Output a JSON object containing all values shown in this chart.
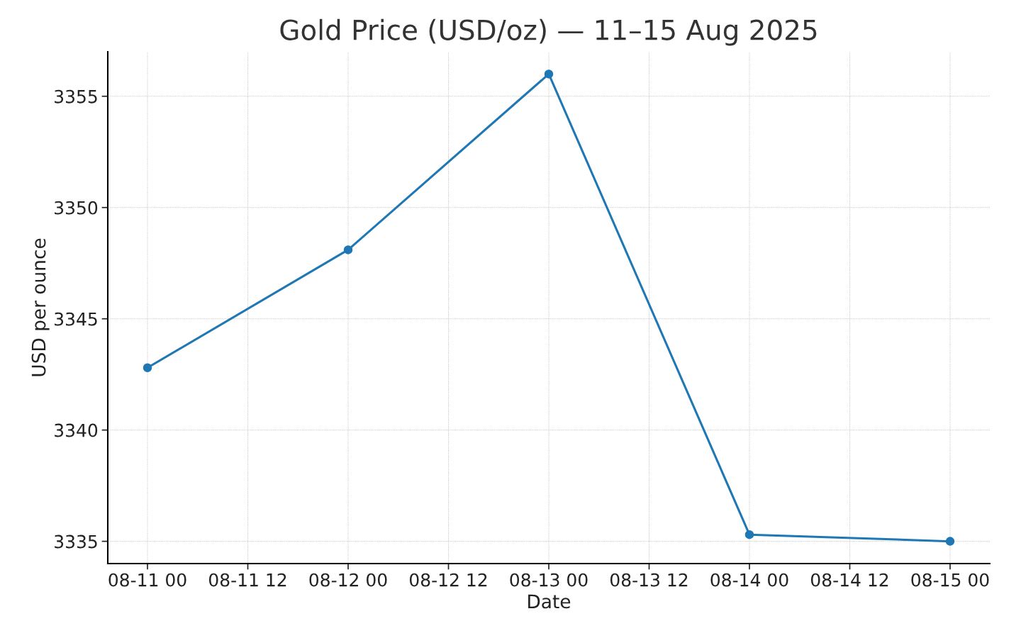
{
  "chart_data": {
    "type": "line",
    "title": "Gold Price (USD/oz) — 11–15 Aug 2025",
    "xlabel": "Date",
    "ylabel": "USD per ounce",
    "x": [
      "2025-08-11",
      "2025-08-12",
      "2025-08-13",
      "2025-08-14",
      "2025-08-15"
    ],
    "series": [
      {
        "color": "#1f77b4",
        "values": [
          3342.8,
          3348.1,
          3356.0,
          3335.3,
          3335.0
        ]
      }
    ],
    "xlim": [
      "2025-08-10T19:15",
      "2025-08-15T04:45"
    ],
    "xticks": [
      {
        "value": "2025-08-11T00:00",
        "label": "08-11 00"
      },
      {
        "value": "2025-08-11T12:00",
        "label": "08-11 12"
      },
      {
        "value": "2025-08-12T00:00",
        "label": "08-12 00"
      },
      {
        "value": "2025-08-12T12:00",
        "label": "08-12 12"
      },
      {
        "value": "2025-08-13T00:00",
        "label": "08-13 00"
      },
      {
        "value": "2025-08-13T12:00",
        "label": "08-13 12"
      },
      {
        "value": "2025-08-14T00:00",
        "label": "08-14 00"
      },
      {
        "value": "2025-08-14T12:00",
        "label": "08-14 12"
      },
      {
        "value": "2025-08-15T00:00",
        "label": "08-15 00"
      }
    ],
    "ylim": [
      3334,
      3357
    ],
    "yticks": [
      3335,
      3340,
      3345,
      3350,
      3355
    ],
    "grid": true,
    "marker": "circle",
    "line_style": "solid"
  }
}
